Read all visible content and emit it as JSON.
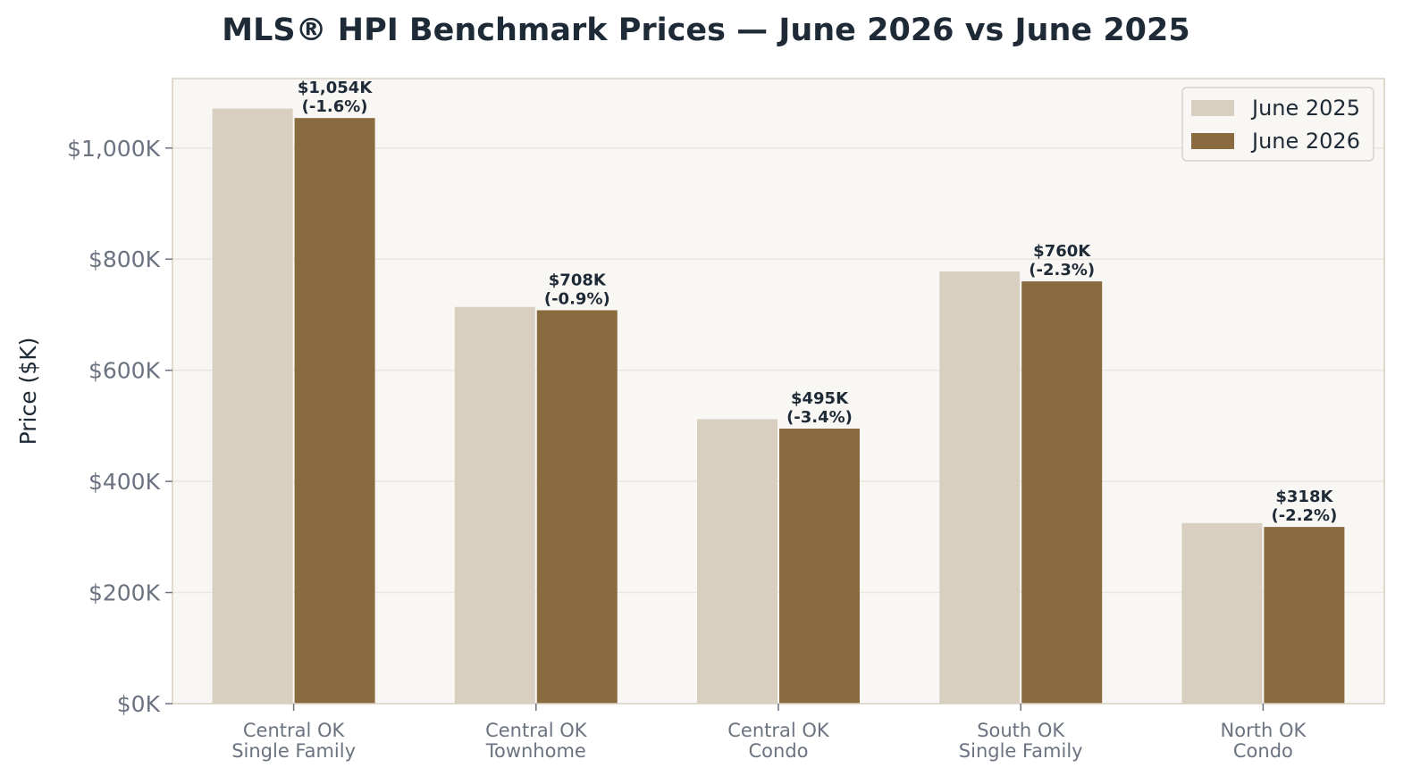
{
  "chart_data": {
    "type": "bar",
    "title": "MLS® HPI Benchmark Prices — June 2026 vs June 2025",
    "xlabel": "",
    "ylabel": "Price ($K)",
    "ylim": [
      0,
      1125
    ],
    "yticks": [
      0,
      200,
      400,
      600,
      800,
      1000
    ],
    "ytick_labels": [
      "$0K",
      "$200K",
      "$400K",
      "$600K",
      "$800K",
      "$1,000K"
    ],
    "categories": [
      [
        "Central OK",
        "Single Family"
      ],
      [
        "Central OK",
        "Townhome"
      ],
      [
        "Central OK",
        "Condo"
      ],
      [
        "South OK",
        "Single Family"
      ],
      [
        "North OK",
        "Condo"
      ]
    ],
    "series": [
      {
        "name": "June 2025",
        "color": "#d9cfc0",
        "values": [
          1071,
          714,
          512,
          778,
          325
        ]
      },
      {
        "name": "June 2026",
        "color": "#8a6a3f",
        "values": [
          1054,
          708,
          495,
          760,
          318
        ]
      }
    ],
    "data_labels": [
      [
        "$1,054K",
        "(-1.6%)"
      ],
      [
        "$708K",
        "(-0.9%)"
      ],
      [
        "$495K",
        "(-3.4%)"
      ],
      [
        "$760K",
        "(-2.3%)"
      ],
      [
        "$318K",
        "(-2.2%)"
      ]
    ],
    "grid": true,
    "legend_position": "top-right",
    "colors": {
      "plot_background": "#f8f7f4",
      "frame": "#d9cfc0",
      "grid": "#ebe7e0",
      "text": "#1f2a37",
      "muted_text": "#6b7280"
    }
  }
}
